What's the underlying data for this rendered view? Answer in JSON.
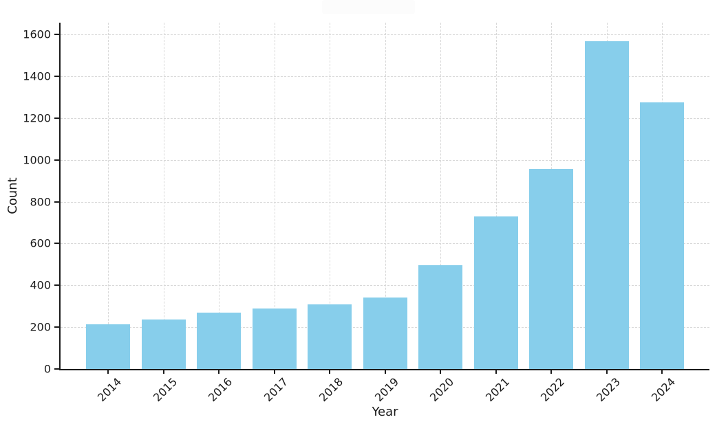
{
  "chart_data": {
    "type": "bar",
    "title": "",
    "xlabel": "Year",
    "ylabel": "Count",
    "categories": [
      "2014",
      "2015",
      "2016",
      "2017",
      "2018",
      "2019",
      "2020",
      "2021",
      "2022",
      "2023",
      "2024"
    ],
    "values": [
      215,
      235,
      270,
      290,
      308,
      343,
      497,
      730,
      955,
      1568,
      1275
    ],
    "yticks": [
      0,
      200,
      400,
      600,
      800,
      1000,
      1200,
      1400,
      1600
    ],
    "ylim": [
      0,
      1656
    ],
    "grid": true,
    "grid_style": "dashed",
    "legend": null,
    "xtick_rotation_deg": 45,
    "colors": {
      "bar": "#87CEEB",
      "grid": "#d8d8d8",
      "axis": "#1a1a1a",
      "background": "#ffffff"
    }
  }
}
